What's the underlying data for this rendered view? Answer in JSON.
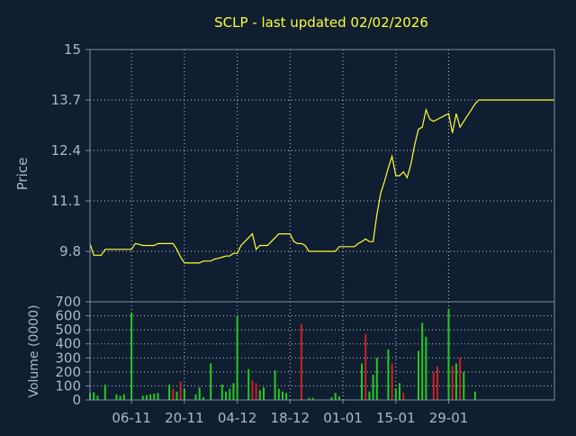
{
  "colors": {
    "background": "#0f1e30",
    "frame": "#7a8fa8",
    "grid": "#c0cad6",
    "title": "#ffff33",
    "axis_text": "#aab8c8",
    "price_line": "#ffff33",
    "volume_up": "#22cc22",
    "volume_down": "#cc2222"
  },
  "chart_data": [
    {
      "type": "line",
      "title": "SCLP - last updated 02/02/2026",
      "ylabel": "Price",
      "ylim": [
        8.5,
        15
      ],
      "yticks": [
        "15",
        "13.7",
        "12.4",
        "11.1",
        "9.8"
      ],
      "ytick_values": [
        15,
        13.7,
        12.4,
        11.1,
        9.8
      ],
      "grid": true,
      "x_range_days": [
        0,
        123
      ],
      "x": [
        0,
        1,
        2,
        3,
        4,
        5,
        6,
        7,
        8,
        9,
        10,
        11,
        12,
        13,
        14,
        15,
        16,
        17,
        18,
        19,
        20,
        21,
        22,
        23,
        24,
        25,
        26,
        27,
        28,
        29,
        30,
        31,
        32,
        33,
        34,
        35,
        36,
        37,
        38,
        39,
        40,
        41,
        42,
        43,
        44,
        45,
        46,
        47,
        48,
        49,
        50,
        51,
        52,
        53,
        54,
        55,
        56,
        57,
        58,
        59,
        60,
        61,
        62,
        63,
        64,
        65,
        66,
        67,
        68,
        69,
        70,
        71,
        72,
        73,
        74,
        75,
        76,
        77,
        78,
        79,
        80,
        81,
        82,
        83,
        84,
        85,
        86,
        87,
        88,
        89,
        90,
        91,
        92,
        93,
        94,
        95,
        96,
        97,
        98,
        99,
        100,
        101,
        102,
        103,
        104,
        105,
        106,
        107,
        108,
        109,
        110,
        111,
        112,
        113,
        114,
        115,
        116,
        117,
        118,
        119,
        120,
        121,
        122,
        123
      ],
      "values": [
        10.0,
        9.7,
        9.7,
        9.7,
        9.85,
        9.85,
        9.85,
        9.85,
        9.85,
        9.85,
        9.85,
        9.85,
        10.0,
        9.98,
        9.95,
        9.95,
        9.95,
        9.95,
        10.0,
        10.0,
        10.0,
        10.0,
        10.0,
        9.85,
        9.65,
        9.5,
        9.5,
        9.5,
        9.5,
        9.5,
        9.55,
        9.55,
        9.55,
        9.6,
        9.62,
        9.65,
        9.68,
        9.68,
        9.75,
        9.75,
        9.95,
        10.05,
        10.15,
        10.25,
        9.85,
        9.95,
        9.95,
        9.95,
        10.05,
        10.15,
        10.25,
        10.25,
        10.25,
        10.25,
        10.05,
        10.0,
        10.0,
        9.95,
        9.8,
        9.8,
        9.8,
        9.8,
        9.8,
        9.8,
        9.8,
        9.8,
        9.92,
        9.92,
        9.92,
        9.92,
        9.92,
        10.0,
        10.05,
        10.12,
        10.05,
        10.05,
        10.75,
        11.3,
        11.6,
        11.95,
        12.25,
        11.75,
        11.75,
        11.85,
        11.7,
        12.05,
        12.55,
        12.95,
        13.0,
        13.45,
        13.2,
        13.15,
        13.2,
        13.25,
        13.3,
        13.35,
        12.85,
        13.35,
        13.0,
        13.15,
        13.3,
        13.45,
        13.6,
        13.7,
        13.7,
        13.7,
        13.7,
        13.7,
        13.7,
        13.7,
        13.7,
        13.7,
        13.7,
        13.7,
        13.7,
        13.7,
        13.7,
        13.7,
        13.7,
        13.7,
        13.7,
        13.7,
        13.7,
        13.7
      ]
    },
    {
      "type": "bar",
      "ylabel": "Volume (0000)",
      "ylim": [
        0,
        700
      ],
      "yticks": [
        "700",
        "600",
        "500",
        "400",
        "300",
        "200",
        "100",
        "0"
      ],
      "ytick_values": [
        700,
        600,
        500,
        400,
        300,
        200,
        100,
        0
      ],
      "grid": true,
      "xticks": [
        "06-11",
        "20-11",
        "04-12",
        "18-12",
        "01-01",
        "15-01",
        "29-01"
      ],
      "xtick_days": [
        11,
        25,
        39,
        53,
        67,
        81,
        95
      ],
      "bars": [
        {
          "x": 0,
          "v": 50,
          "dir": "up"
        },
        {
          "x": 1,
          "v": 55,
          "dir": "up"
        },
        {
          "x": 2,
          "v": 30,
          "dir": "up"
        },
        {
          "x": 4,
          "v": 110,
          "dir": "up"
        },
        {
          "x": 7,
          "v": 40,
          "dir": "up"
        },
        {
          "x": 8,
          "v": 30,
          "dir": "up"
        },
        {
          "x": 9,
          "v": 40,
          "dir": "up"
        },
        {
          "x": 11,
          "v": 620,
          "dir": "up"
        },
        {
          "x": 14,
          "v": 30,
          "dir": "up"
        },
        {
          "x": 15,
          "v": 35,
          "dir": "up"
        },
        {
          "x": 16,
          "v": 40,
          "dir": "up"
        },
        {
          "x": 17,
          "v": 45,
          "dir": "up"
        },
        {
          "x": 18,
          "v": 50,
          "dir": "up"
        },
        {
          "x": 21,
          "v": 110,
          "dir": "up"
        },
        {
          "x": 22,
          "v": 80,
          "dir": "down"
        },
        {
          "x": 23,
          "v": 60,
          "dir": "up"
        },
        {
          "x": 24,
          "v": 130,
          "dir": "down"
        },
        {
          "x": 25,
          "v": 80,
          "dir": "up"
        },
        {
          "x": 28,
          "v": 40,
          "dir": "up"
        },
        {
          "x": 29,
          "v": 90,
          "dir": "up"
        },
        {
          "x": 30,
          "v": 20,
          "dir": "up"
        },
        {
          "x": 32,
          "v": 260,
          "dir": "up"
        },
        {
          "x": 35,
          "v": 110,
          "dir": "up"
        },
        {
          "x": 36,
          "v": 60,
          "dir": "up"
        },
        {
          "x": 37,
          "v": 80,
          "dir": "up"
        },
        {
          "x": 38,
          "v": 120,
          "dir": "up"
        },
        {
          "x": 39,
          "v": 600,
          "dir": "up"
        },
        {
          "x": 42,
          "v": 220,
          "dir": "up"
        },
        {
          "x": 43,
          "v": 140,
          "dir": "down"
        },
        {
          "x": 44,
          "v": 120,
          "dir": "down"
        },
        {
          "x": 45,
          "v": 70,
          "dir": "up"
        },
        {
          "x": 46,
          "v": 90,
          "dir": "up"
        },
        {
          "x": 49,
          "v": 210,
          "dir": "up"
        },
        {
          "x": 50,
          "v": 80,
          "dir": "up"
        },
        {
          "x": 51,
          "v": 60,
          "dir": "up"
        },
        {
          "x": 52,
          "v": 50,
          "dir": "up"
        },
        {
          "x": 56,
          "v": 540,
          "dir": "down"
        },
        {
          "x": 58,
          "v": 15,
          "dir": "up"
        },
        {
          "x": 59,
          "v": 15,
          "dir": "up"
        },
        {
          "x": 64,
          "v": 20,
          "dir": "up"
        },
        {
          "x": 65,
          "v": 50,
          "dir": "up"
        },
        {
          "x": 66,
          "v": 25,
          "dir": "up"
        },
        {
          "x": 72,
          "v": 260,
          "dir": "up"
        },
        {
          "x": 73,
          "v": 470,
          "dir": "down"
        },
        {
          "x": 74,
          "v": 60,
          "dir": "up"
        },
        {
          "x": 75,
          "v": 180,
          "dir": "up"
        },
        {
          "x": 76,
          "v": 300,
          "dir": "up"
        },
        {
          "x": 79,
          "v": 360,
          "dir": "up"
        },
        {
          "x": 80,
          "v": 260,
          "dir": "down"
        },
        {
          "x": 81,
          "v": 80,
          "dir": "up"
        },
        {
          "x": 82,
          "v": 120,
          "dir": "up"
        },
        {
          "x": 83,
          "v": 50,
          "dir": "down"
        },
        {
          "x": 87,
          "v": 350,
          "dir": "up"
        },
        {
          "x": 88,
          "v": 550,
          "dir": "up"
        },
        {
          "x": 89,
          "v": 450,
          "dir": "up"
        },
        {
          "x": 91,
          "v": 200,
          "dir": "down"
        },
        {
          "x": 92,
          "v": 240,
          "dir": "down"
        },
        {
          "x": 95,
          "v": 650,
          "dir": "up"
        },
        {
          "x": 96,
          "v": 240,
          "dir": "down"
        },
        {
          "x": 97,
          "v": 260,
          "dir": "up"
        },
        {
          "x": 98,
          "v": 300,
          "dir": "down"
        },
        {
          "x": 99,
          "v": 200,
          "dir": "up"
        },
        {
          "x": 102,
          "v": 60,
          "dir": "up"
        }
      ]
    }
  ]
}
